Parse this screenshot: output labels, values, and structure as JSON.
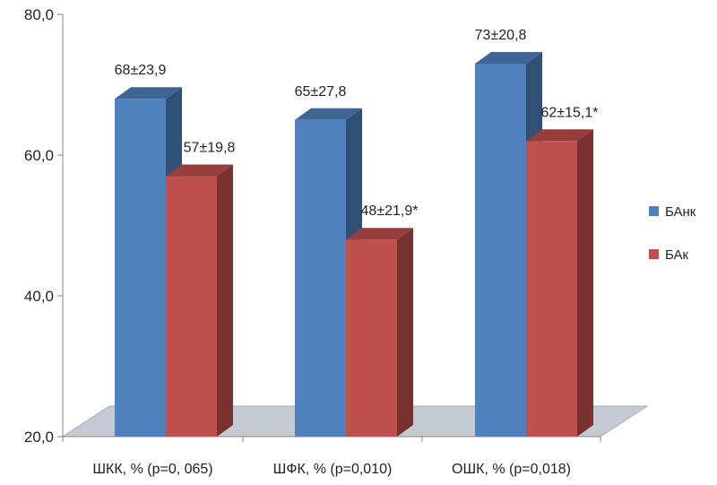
{
  "chart_data": {
    "type": "bar",
    "categories": [
      "ШКК, % (p=0, 065)",
      "ШФК, % (p=0,010)",
      "ОШК, % (p=0,018)"
    ],
    "series": [
      {
        "name": "БАнк",
        "color": "#4f81bd",
        "values": [
          68,
          65,
          73
        ],
        "labels": [
          "68±23,9",
          "65±27,8",
          "73±20,8"
        ]
      },
      {
        "name": "БАк",
        "color": "#c0504d",
        "values": [
          57,
          48,
          62
        ],
        "labels": [
          "57±19,8",
          "48±21,9*",
          "62±15,1*"
        ]
      }
    ],
    "y_ticks": [
      "20,0",
      "40,0",
      "60,0",
      "80,0"
    ],
    "ylim": [
      20,
      80
    ],
    "y_major_unit": 20,
    "title": "",
    "xlabel": "",
    "ylabel": "",
    "style": "3d-clustered-column",
    "grid": false,
    "legend_position": "right"
  }
}
